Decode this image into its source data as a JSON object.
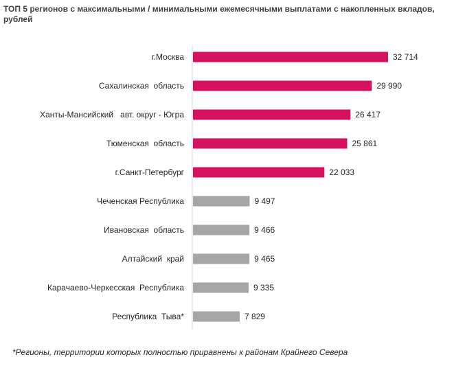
{
  "chart_data": {
    "type": "bar",
    "orientation": "horizontal",
    "title": "ТОП 5 регионов с максимальными / минимальными ежемесячными выплатами с накопленных вкладов, рублей",
    "categories": [
      "г.Москва",
      "Сахалинская  область",
      "Ханты-Мансийский   авт. округ - Югра",
      "Тюменская  область",
      "г.Санкт-Петербург",
      "Чеченская Республика",
      "Ивановская  область",
      "Алтайский  край",
      "Карачаево-Черкесская  Республика",
      "Республика  Тыва*"
    ],
    "values": [
      32714,
      29990,
      26417,
      25861,
      22033,
      9497,
      9466,
      9465,
      9335,
      7829
    ],
    "value_labels": [
      "32 714",
      "29 990",
      "26 417",
      "25 861",
      "22 033",
      "9 497",
      "9 466",
      "9 465",
      "9 335",
      "7 829"
    ],
    "groups": [
      "max",
      "max",
      "max",
      "max",
      "max",
      "min",
      "min",
      "min",
      "min",
      "min"
    ],
    "colors": {
      "max": "#d6115f",
      "min": "#a6a6a6"
    },
    "xlim": [
      0,
      35000
    ],
    "grid": false,
    "legend": "none"
  },
  "footnote": "*Регионы,  территории  которых  полностью  приравнены  к районам  Крайнего  Севера"
}
